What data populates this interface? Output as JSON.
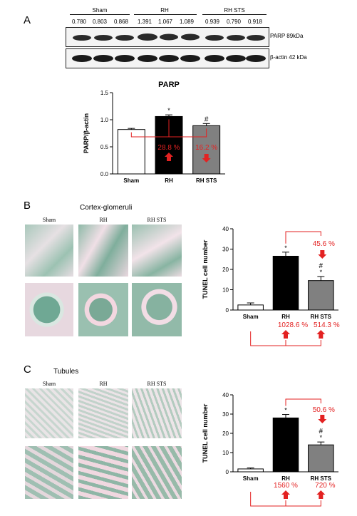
{
  "panel_a": {
    "letter": "A",
    "blot": {
      "groups": [
        "Sham",
        "RH",
        "RH STS"
      ],
      "values": [
        "0.780",
        "0.803",
        "0.868",
        "1.391",
        "1.067",
        "1.089",
        "0.939",
        "0.790",
        "0.918"
      ],
      "row1_label": "PARP 89kDa",
      "row2_label": "β-actin 42 kDa"
    }
  },
  "panel_b": {
    "letter": "B",
    "title": "Cortex-glomeruli",
    "micro_labels": [
      "Sham",
      "RH",
      "RH STS"
    ]
  },
  "panel_c": {
    "letter": "C",
    "title": "Tubules",
    "micro_labels": [
      "Sham",
      "RH",
      "RH STS"
    ]
  },
  "colors": {
    "sham": "#ffffff",
    "rh": "#000000",
    "rh_sts": "#808080",
    "annot": "#e32222",
    "tissue": "#8fb8a8"
  },
  "chart_data": [
    {
      "type": "bar",
      "title": "PARP",
      "ylabel": "PARP/β-actin",
      "categories": [
        "Sham",
        "RH",
        "RH STS"
      ],
      "values": [
        0.82,
        1.06,
        0.89
      ],
      "errors": [
        0.02,
        0.03,
        0.04
      ],
      "ylim": [
        0,
        1.5
      ],
      "yticks": [
        "0.0",
        "0.5",
        "1.0",
        "1.5"
      ],
      "sig_marks": [
        "",
        "*",
        "#"
      ],
      "annotations": [
        "28.8 %",
        "16.2 %"
      ]
    },
    {
      "type": "bar",
      "title": "",
      "ylabel": "TUNEL cell number",
      "categories": [
        "Sham",
        "RH",
        "RH STS"
      ],
      "values": [
        2.5,
        26.5,
        14.5
      ],
      "errors": [
        1.0,
        2.0,
        2.0
      ],
      "ylim": [
        0,
        40
      ],
      "yticks": [
        "0",
        "10",
        "20",
        "30",
        "40"
      ],
      "sig_marks": [
        "",
        "*",
        "#\n*"
      ],
      "annotations": [
        "45.6 %",
        "1028.6 %",
        "514.3 %"
      ]
    },
    {
      "type": "bar",
      "title": "",
      "ylabel": "TUNEL cell number",
      "categories": [
        "Sham",
        "RH",
        "RH STS"
      ],
      "values": [
        1.5,
        28,
        14
      ],
      "errors": [
        0.5,
        1.8,
        1.5
      ],
      "ylim": [
        0,
        40
      ],
      "yticks": [
        "0",
        "10",
        "20",
        "30",
        "40"
      ],
      "sig_marks": [
        "",
        "*",
        "#\n*"
      ],
      "annotations": [
        "50.6 %",
        "1560 %",
        "720 %"
      ]
    }
  ]
}
